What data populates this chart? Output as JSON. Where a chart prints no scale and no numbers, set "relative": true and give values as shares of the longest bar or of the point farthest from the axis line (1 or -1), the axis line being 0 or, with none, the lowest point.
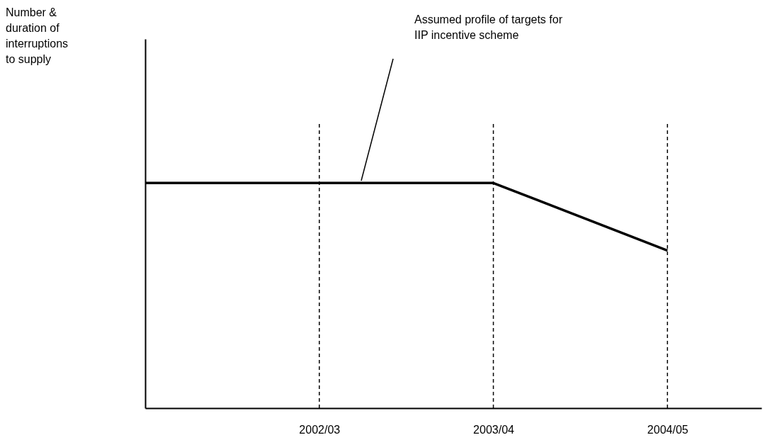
{
  "chart_data": {
    "type": "line",
    "relative": true,
    "categories": [
      null,
      "2002/03",
      "2003/04",
      "2004/05"
    ],
    "series": [
      {
        "color": "#000000",
        "values": [
          1,
          1,
          1,
          0.7
        ]
      }
    ],
    "ref_lines": [
      {
        "axis": "x",
        "value": "2002/03",
        "line_style": "dashed",
        "color": "#000000"
      },
      {
        "axis": "x",
        "value": "2003/04",
        "line_style": "dashed",
        "color": "#000000"
      },
      {
        "axis": "x",
        "value": "2004/05",
        "line_style": "dashed",
        "color": "#000000"
      }
    ],
    "annotations": [
      "Number & duration of interruptions to supply",
      "Assumed profile of targets for IIP incentive scheme"
    ],
    "grid": false,
    "marker": "none",
    "line_style": "solid"
  }
}
